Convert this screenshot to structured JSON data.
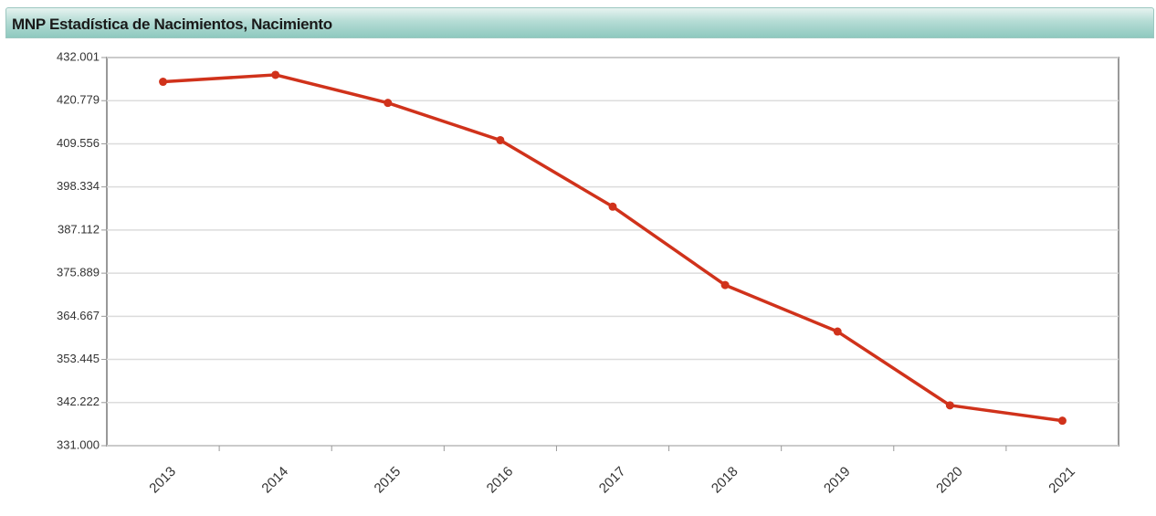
{
  "chart_data": {
    "type": "line",
    "title": "MNP Estadística de Nacimientos, Nacimiento",
    "categories": [
      "2013",
      "2014",
      "2015",
      "2016",
      "2017",
      "2018",
      "2019",
      "2020",
      "2021"
    ],
    "series": [
      {
        "name": "Nacimiento",
        "color": "#d0321b",
        "values": [
          425700,
          427500,
          420200,
          410500,
          393200,
          372800,
          360700,
          341500,
          337500
        ]
      }
    ],
    "ylim": [
      331000,
      432001
    ],
    "yticks": [
      {
        "value": 331000,
        "label": "331.000"
      },
      {
        "value": 342222,
        "label": "342.222"
      },
      {
        "value": 353445,
        "label": "353.445"
      },
      {
        "value": 364667,
        "label": "364.667"
      },
      {
        "value": 375889,
        "label": "375.889"
      },
      {
        "value": 387112,
        "label": "387.112"
      },
      {
        "value": 398334,
        "label": "398.334"
      },
      {
        "value": 409556,
        "label": "409.556"
      },
      {
        "value": 420779,
        "label": "420.779"
      },
      {
        "value": 432001,
        "label": "432.001"
      }
    ],
    "grid": true
  }
}
